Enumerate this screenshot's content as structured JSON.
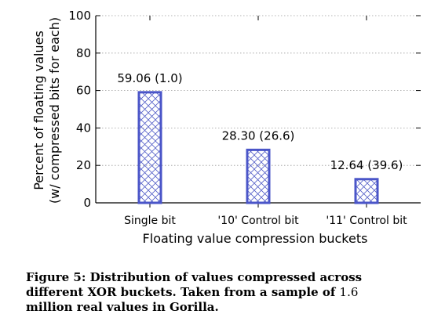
{
  "chart_data": {
    "type": "bar",
    "categories": [
      "Single bit",
      "'10' Control bit",
      "'11' Control bit"
    ],
    "values": [
      59.06,
      28.3,
      12.64
    ],
    "data_labels": [
      "59.06 (1.0)",
      "28.30 (26.6)",
      "12.64 (39.6)"
    ],
    "xlabel": "Floating value compression buckets",
    "ylabel_line1": "Percent of floating values",
    "ylabel_line2": "(w/ compressed bits for each)",
    "ylim": [
      0,
      100
    ],
    "yticks": [
      "0",
      "20",
      "40",
      "60",
      "80",
      "100"
    ],
    "grid": true,
    "bar_color": "#4a55c8",
    "bar_pattern": "crosshatch"
  },
  "caption": {
    "line1": "Figure 5: Distribution of values compressed across",
    "line2_a": "different XOR buckets. Taken from a sample of ",
    "line2_num": "1.6",
    "line3": "million real values in Gorilla."
  }
}
